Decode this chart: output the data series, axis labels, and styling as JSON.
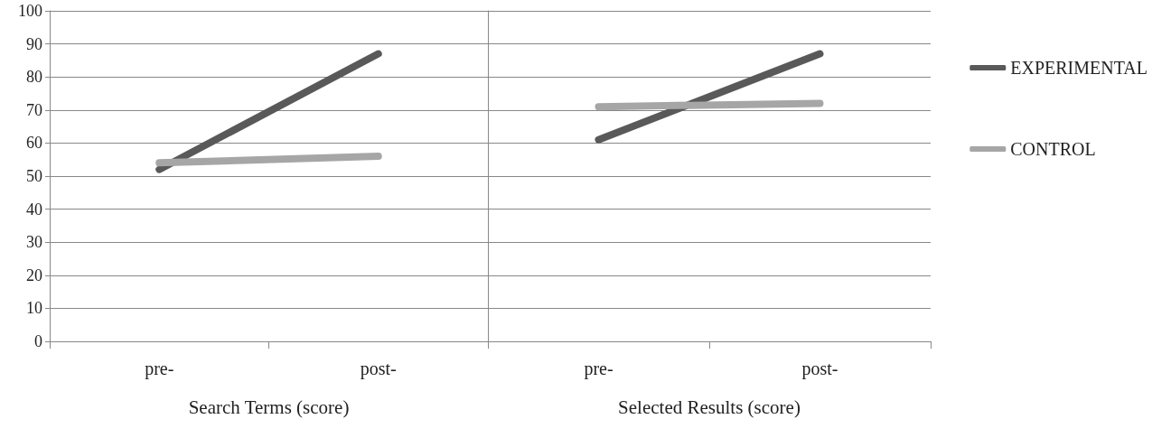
{
  "chart_data": [
    {
      "type": "line",
      "xlabel": "Search Terms (score)",
      "categories": [
        "pre-",
        "post-"
      ],
      "series": [
        {
          "color": "#595959",
          "values": [
            52,
            87
          ]
        },
        {
          "color": "#a6a6a6",
          "values": [
            54,
            56
          ]
        }
      ],
      "ylim": [
        0,
        100
      ],
      "yticks": [
        0,
        10,
        20,
        30,
        40,
        50,
        60,
        70,
        80,
        90,
        100
      ],
      "grid": "y",
      "marker": "none",
      "legend": false
    },
    {
      "type": "line",
      "xlabel": "Selected Results (score)",
      "categories": [
        "pre-",
        "post-"
      ],
      "series": [
        {
          "name": "EXPERIMENTAL",
          "color": "#595959",
          "values": [
            61,
            87
          ]
        },
        {
          "name": "CONTROL",
          "color": "#a6a6a6",
          "values": [
            71,
            72
          ]
        }
      ],
      "ylim": [
        0,
        100
      ],
      "yticks": [
        0,
        10,
        20,
        30,
        40,
        50,
        60,
        70,
        80,
        90,
        100
      ],
      "grid": "y",
      "marker": "none",
      "legend": "right",
      "tick_labels": "x"
    }
  ]
}
